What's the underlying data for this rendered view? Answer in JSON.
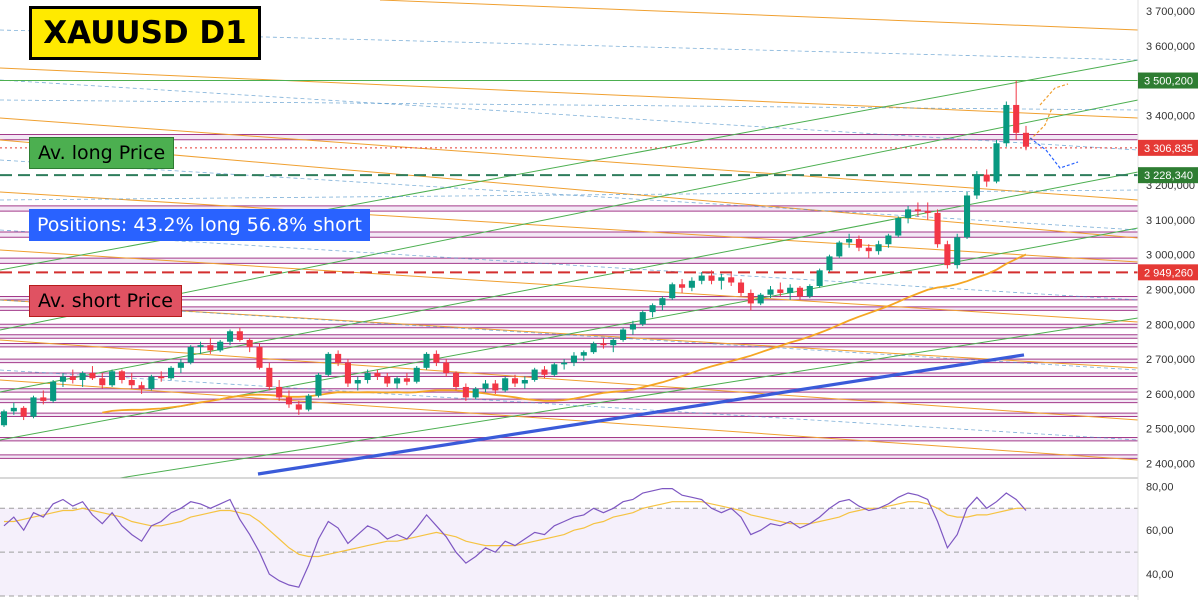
{
  "title": "XAUUSD D1",
  "labels": {
    "long_price": "Av. long Price",
    "positions": "Positions: 43.2% long 56.8% short",
    "short_price": "Av. short Price"
  },
  "colors": {
    "up": "#089981",
    "down": "#f23645",
    "ma_orange": "#f5a623",
    "ma_blue": "#3a5bd9",
    "rsi_line": "#7e57c2",
    "rsi_ma": "#f5c342",
    "marker_green": "#2e7d32",
    "marker_red": "#e53935",
    "long_avg": "#2e7d5c",
    "short_avg": "#d32f2f"
  },
  "chart_data": {
    "type": "candlestick",
    "symbol": "XAUUSD",
    "timeframe": "D1",
    "ylim": [
      2370,
      3720
    ],
    "y_ticks": [
      "3 700,000",
      "3 600,000",
      "3 500,000",
      "3 400,000",
      "3 300,000",
      "3 200,000",
      "3 100,000",
      "3 000,000",
      "2 900,000",
      "2 800,000",
      "2 700,000",
      "2 600,000",
      "2 500,000",
      "2 400,000"
    ],
    "y_tick_values": [
      3700,
      3600,
      3500,
      3400,
      3300,
      3200,
      3100,
      3000,
      2900,
      2800,
      2700,
      2600,
      2500,
      2400
    ],
    "price_markers": [
      {
        "label": "3 500,200",
        "value": 3500.2,
        "style": "green"
      },
      {
        "label": "3 306,835",
        "value": 3306.835,
        "style": "red"
      },
      {
        "label": "3 228,340",
        "value": 3228.34,
        "style": "green"
      },
      {
        "label": "2 949,260",
        "value": 2949.26,
        "style": "red"
      }
    ],
    "avg_long_price": 3228.34,
    "avg_short_price": 2949.26,
    "positions": {
      "long_pct": 43.2,
      "short_pct": 56.8
    },
    "candles": [
      [
        2510,
        2555,
        2505,
        2550
      ],
      [
        2550,
        2575,
        2540,
        2560
      ],
      [
        2560,
        2565,
        2525,
        2535
      ],
      [
        2535,
        2595,
        2530,
        2590
      ],
      [
        2590,
        2610,
        2570,
        2580
      ],
      [
        2580,
        2640,
        2575,
        2635
      ],
      [
        2635,
        2660,
        2620,
        2650
      ],
      [
        2650,
        2670,
        2630,
        2640
      ],
      [
        2640,
        2665,
        2620,
        2660
      ],
      [
        2660,
        2680,
        2640,
        2645
      ],
      [
        2645,
        2660,
        2615,
        2625
      ],
      [
        2625,
        2670,
        2620,
        2665
      ],
      [
        2665,
        2670,
        2630,
        2640
      ],
      [
        2640,
        2660,
        2615,
        2625
      ],
      [
        2625,
        2635,
        2600,
        2615
      ],
      [
        2615,
        2655,
        2610,
        2650
      ],
      [
        2650,
        2665,
        2635,
        2645
      ],
      [
        2645,
        2680,
        2640,
        2675
      ],
      [
        2675,
        2700,
        2660,
        2690
      ],
      [
        2690,
        2740,
        2685,
        2735
      ],
      [
        2735,
        2750,
        2715,
        2740
      ],
      [
        2740,
        2760,
        2715,
        2725
      ],
      [
        2725,
        2755,
        2720,
        2750
      ],
      [
        2750,
        2785,
        2740,
        2780
      ],
      [
        2780,
        2790,
        2750,
        2755
      ],
      [
        2755,
        2760,
        2720,
        2735
      ],
      [
        2735,
        2745,
        2670,
        2675
      ],
      [
        2675,
        2690,
        2610,
        2620
      ],
      [
        2620,
        2640,
        2580,
        2590
      ],
      [
        2590,
        2610,
        2560,
        2570
      ],
      [
        2570,
        2580,
        2540,
        2555
      ],
      [
        2555,
        2600,
        2550,
        2595
      ],
      [
        2595,
        2660,
        2590,
        2655
      ],
      [
        2655,
        2720,
        2650,
        2715
      ],
      [
        2715,
        2725,
        2680,
        2690
      ],
      [
        2690,
        2700,
        2620,
        2630
      ],
      [
        2630,
        2650,
        2610,
        2640
      ],
      [
        2640,
        2670,
        2630,
        2660
      ],
      [
        2660,
        2670,
        2640,
        2650
      ],
      [
        2650,
        2660,
        2620,
        2630
      ],
      [
        2630,
        2650,
        2615,
        2645
      ],
      [
        2645,
        2660,
        2625,
        2635
      ],
      [
        2635,
        2680,
        2630,
        2675
      ],
      [
        2675,
        2720,
        2670,
        2715
      ],
      [
        2715,
        2725,
        2680,
        2690
      ],
      [
        2690,
        2700,
        2650,
        2660
      ],
      [
        2660,
        2665,
        2610,
        2620
      ],
      [
        2620,
        2630,
        2580,
        2590
      ],
      [
        2590,
        2620,
        2585,
        2615
      ],
      [
        2615,
        2640,
        2605,
        2630
      ],
      [
        2630,
        2640,
        2600,
        2610
      ],
      [
        2610,
        2650,
        2605,
        2645
      ],
      [
        2645,
        2655,
        2620,
        2630
      ],
      [
        2630,
        2650,
        2615,
        2640
      ],
      [
        2640,
        2675,
        2635,
        2670
      ],
      [
        2670,
        2680,
        2645,
        2655
      ],
      [
        2655,
        2690,
        2650,
        2685
      ],
      [
        2685,
        2700,
        2670,
        2690
      ],
      [
        2690,
        2720,
        2680,
        2710
      ],
      [
        2710,
        2725,
        2695,
        2720
      ],
      [
        2720,
        2750,
        2715,
        2745
      ],
      [
        2745,
        2760,
        2730,
        2740
      ],
      [
        2740,
        2760,
        2720,
        2755
      ],
      [
        2755,
        2790,
        2750,
        2785
      ],
      [
        2785,
        2810,
        2770,
        2800
      ],
      [
        2800,
        2840,
        2795,
        2835
      ],
      [
        2835,
        2860,
        2820,
        2855
      ],
      [
        2855,
        2880,
        2840,
        2875
      ],
      [
        2875,
        2920,
        2870,
        2915
      ],
      [
        2915,
        2930,
        2890,
        2905
      ],
      [
        2905,
        2935,
        2895,
        2925
      ],
      [
        2925,
        2950,
        2915,
        2940
      ],
      [
        2940,
        2955,
        2915,
        2925
      ],
      [
        2925,
        2945,
        2900,
        2935
      ],
      [
        2935,
        2950,
        2910,
        2920
      ],
      [
        2920,
        2930,
        2880,
        2890
      ],
      [
        2890,
        2900,
        2840,
        2860
      ],
      [
        2860,
        2890,
        2855,
        2885
      ],
      [
        2885,
        2910,
        2875,
        2900
      ],
      [
        2900,
        2920,
        2880,
        2890
      ],
      [
        2890,
        2915,
        2870,
        2905
      ],
      [
        2905,
        2910,
        2870,
        2880
      ],
      [
        2880,
        2915,
        2875,
        2910
      ],
      [
        2910,
        2960,
        2905,
        2955
      ],
      [
        2955,
        3000,
        2950,
        2995
      ],
      [
        2995,
        3040,
        2990,
        3035
      ],
      [
        3035,
        3060,
        3020,
        3045
      ],
      [
        3045,
        3055,
        3010,
        3020
      ],
      [
        3020,
        3030,
        2990,
        3010
      ],
      [
        3010,
        3040,
        3000,
        3030
      ],
      [
        3030,
        3060,
        3020,
        3055
      ],
      [
        3055,
        3110,
        3050,
        3105
      ],
      [
        3105,
        3140,
        3090,
        3130
      ],
      [
        3130,
        3150,
        3110,
        3125
      ],
      [
        3125,
        3150,
        3100,
        3120
      ],
      [
        3120,
        3130,
        3020,
        3030
      ],
      [
        3030,
        3040,
        2960,
        2970
      ],
      [
        2970,
        3060,
        2960,
        3050
      ],
      [
        3050,
        3180,
        3045,
        3170
      ],
      [
        3170,
        3240,
        3160,
        3230
      ],
      [
        3230,
        3245,
        3195,
        3210
      ],
      [
        3210,
        3330,
        3205,
        3320
      ],
      [
        3320,
        3440,
        3310,
        3430
      ],
      [
        3430,
        3500,
        3330,
        3350
      ],
      [
        3350,
        3370,
        3300,
        3310
      ]
    ],
    "rsi": {
      "ylim": [
        30,
        82
      ],
      "y_ticks": [
        "80,00",
        "60,00",
        "40,00"
      ],
      "y_tick_values": [
        80,
        60,
        40
      ],
      "levels": [
        70,
        50,
        30
      ],
      "values": [
        62,
        66,
        60,
        68,
        66,
        72,
        74,
        71,
        73,
        67,
        63,
        68,
        62,
        58,
        55,
        62,
        64,
        68,
        70,
        73,
        72,
        70,
        72,
        74,
        65,
        58,
        50,
        40,
        37,
        35,
        34,
        44,
        56,
        64,
        61,
        54,
        58,
        62,
        60,
        56,
        58,
        56,
        61,
        67,
        62,
        57,
        50,
        45,
        48,
        52,
        50,
        55,
        53,
        56,
        59,
        58,
        62,
        64,
        66,
        67,
        70,
        68,
        70,
        73,
        74,
        77,
        78,
        79,
        79,
        76,
        75,
        74,
        70,
        68,
        70,
        66,
        58,
        60,
        63,
        62,
        64,
        61,
        63,
        66,
        70,
        73,
        74,
        71,
        69,
        70,
        72,
        75,
        77,
        76,
        74,
        64,
        52,
        58,
        70,
        75,
        70,
        73,
        77,
        74,
        69
      ],
      "ma": [
        64,
        64,
        65,
        66,
        67,
        68,
        69,
        69,
        70,
        69,
        68,
        67,
        66,
        64,
        63,
        62,
        62,
        63,
        64,
        66,
        67,
        68,
        69,
        69,
        68,
        67,
        64,
        60,
        56,
        52,
        49,
        48,
        48,
        49,
        50,
        51,
        52,
        53,
        54,
        55,
        55,
        56,
        57,
        58,
        59,
        58,
        57,
        55,
        54,
        53,
        53,
        53,
        53,
        54,
        55,
        56,
        57,
        58,
        60,
        61,
        63,
        64,
        66,
        67,
        68,
        70,
        71,
        72,
        73,
        73,
        73,
        73,
        72,
        71,
        70,
        69,
        67,
        66,
        65,
        64,
        63,
        63,
        63,
        64,
        65,
        66,
        68,
        69,
        70,
        70,
        71,
        72,
        73,
        73,
        72,
        70,
        67,
        66,
        66,
        67,
        67,
        68,
        69,
        70,
        70
      ]
    }
  }
}
